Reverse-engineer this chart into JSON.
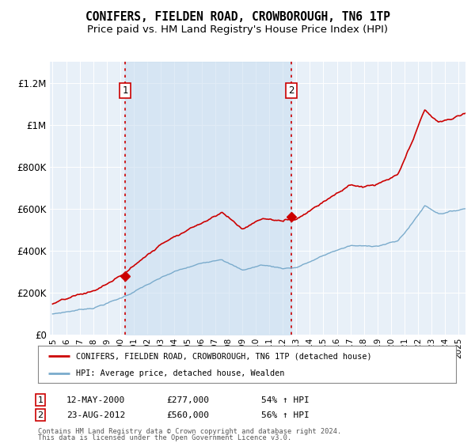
{
  "title": "CONIFERS, FIELDEN ROAD, CROWBOROUGH, TN6 1TP",
  "subtitle": "Price paid vs. HM Land Registry's House Price Index (HPI)",
  "title_fontsize": 10.5,
  "subtitle_fontsize": 9.5,
  "background_color": "#ffffff",
  "plot_bg_color": "#e8f0f8",
  "ylim": [
    0,
    1300000
  ],
  "yticks": [
    0,
    200000,
    400000,
    600000,
    800000,
    1000000,
    1200000
  ],
  "ytick_labels": [
    "£0",
    "£200K",
    "£400K",
    "£600K",
    "£800K",
    "£1M",
    "£1.2M"
  ],
  "legend_label_red": "CONIFERS, FIELDEN ROAD, CROWBOROUGH, TN6 1TP (detached house)",
  "legend_label_blue": "HPI: Average price, detached house, Wealden",
  "red_line_color": "#cc0000",
  "blue_line_color": "#7aabcc",
  "fill_color": "#c8ddf0",
  "vline_color": "#cc0000",
  "marker_color": "#cc0000",
  "sale1_year": 2000.36,
  "sale1_price": 277000,
  "sale1_label": "1",
  "sale1_date": "12-MAY-2000",
  "sale1_pct": "54% ↑ HPI",
  "sale2_year": 2012.64,
  "sale2_price": 560000,
  "sale2_label": "2",
  "sale2_date": "23-AUG-2012",
  "sale2_pct": "56% ↑ HPI",
  "footer1": "Contains HM Land Registry data © Crown copyright and database right 2024.",
  "footer2": "This data is licensed under the Open Government Licence v3.0.",
  "annotation_box_color": "#cc0000",
  "grid_color": "#ffffff",
  "xmin": 1994.8,
  "xmax": 2025.5
}
